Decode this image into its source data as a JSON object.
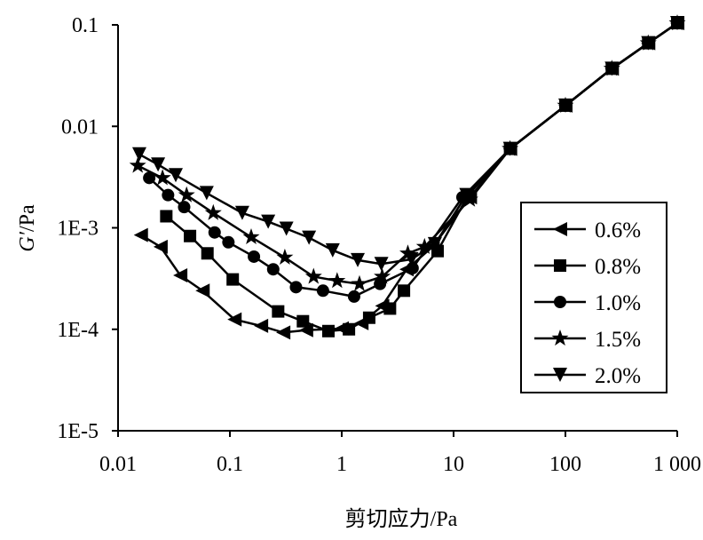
{
  "chart_data": {
    "type": "line",
    "title": "",
    "xlabel": "剪切应力/Pa",
    "ylabel_italic": "G′",
    "ylabel_unit": "/Pa",
    "xscale": "log",
    "yscale": "log",
    "xlim": [
      0.01,
      1000
    ],
    "ylim": [
      1e-05,
      0.1
    ],
    "xticks": [
      0.01,
      0.1,
      1,
      10,
      100,
      1000
    ],
    "xtick_labels": [
      "0.01",
      "0.1",
      "1",
      "10",
      "100",
      "1 000"
    ],
    "yticks": [
      1e-05,
      0.0001,
      0.001,
      0.01,
      0.1
    ],
    "ytick_labels": [
      "1E-5",
      "1E-4",
      "1E-3",
      "0.01",
      "0.1"
    ],
    "grid": false,
    "legend_position": "right-center",
    "series": [
      {
        "name": "0.6%",
        "marker": "triangle-left",
        "x": [
          0.016,
          0.024,
          0.036,
          0.057,
          0.11,
          0.19,
          0.3,
          0.48,
          1.0,
          1.5,
          2.3,
          3.8,
          6.5,
          14,
          32,
          100,
          260,
          550,
          1000
        ],
        "y": [
          0.00085,
          0.00065,
          0.00034,
          0.00024,
          0.000125,
          0.000108,
          9.3e-05,
          9.8e-05,
          0.000102,
          0.000115,
          0.00017,
          0.00039,
          0.00065,
          0.002,
          0.006,
          0.016,
          0.037,
          0.066,
          0.104
        ]
      },
      {
        "name": "0.8%",
        "marker": "square",
        "x": [
          0.027,
          0.044,
          0.063,
          0.106,
          0.27,
          0.45,
          0.76,
          1.16,
          1.76,
          2.7,
          3.6,
          7.2,
          13.5,
          32,
          100,
          260,
          550,
          1000
        ],
        "y": [
          0.0013,
          0.00083,
          0.00056,
          0.00031,
          0.00015,
          0.00012,
          9.6e-05,
          0.0001,
          0.00013,
          0.00016,
          0.00024,
          0.00059,
          0.0021,
          0.006,
          0.016,
          0.037,
          0.066,
          0.104
        ]
      },
      {
        "name": "1.0%",
        "marker": "circle",
        "x": [
          0.019,
          0.028,
          0.039,
          0.073,
          0.097,
          0.164,
          0.244,
          0.39,
          0.68,
          1.29,
          2.2,
          4.3,
          12,
          32,
          100,
          260,
          550,
          1000
        ],
        "y": [
          0.0031,
          0.0021,
          0.0016,
          0.0009,
          0.00072,
          0.00052,
          0.00039,
          0.00026,
          0.00024,
          0.00021,
          0.00028,
          0.0004,
          0.002,
          0.006,
          0.016,
          0.037,
          0.066,
          0.104
        ]
      },
      {
        "name": "1.5%",
        "marker": "star",
        "x": [
          0.015,
          0.025,
          0.041,
          0.071,
          0.155,
          0.31,
          0.56,
          0.91,
          1.44,
          2.3,
          3.9,
          5.5,
          14,
          32,
          100,
          260,
          550,
          1000
        ],
        "y": [
          0.0041,
          0.0031,
          0.0021,
          0.0014,
          0.00081,
          0.00051,
          0.00033,
          0.0003,
          0.00028,
          0.00033,
          0.00056,
          0.00065,
          0.0019,
          0.006,
          0.016,
          0.037,
          0.066,
          0.104
        ]
      },
      {
        "name": "2.0%",
        "marker": "triangle-down",
        "x": [
          0.0155,
          0.0228,
          0.0328,
          0.062,
          0.129,
          0.22,
          0.32,
          0.51,
          0.83,
          1.39,
          2.26,
          4.2,
          6.8,
          13,
          32,
          100,
          260,
          550,
          1000
        ],
        "y": [
          0.0053,
          0.0042,
          0.0033,
          0.0022,
          0.0014,
          0.00115,
          0.00098,
          0.0008,
          0.0006,
          0.00048,
          0.00044,
          0.00049,
          0.00069,
          0.0021,
          0.006,
          0.016,
          0.037,
          0.066,
          0.104
        ]
      }
    ]
  }
}
